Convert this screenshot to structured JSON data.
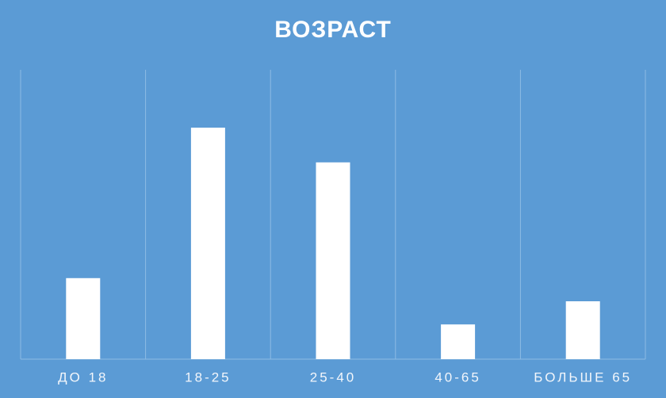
{
  "chart_data": {
    "type": "bar",
    "title": "ВОЗРАСТ",
    "categories": [
      "ДО 18",
      "18-25",
      "25-40",
      "40-65",
      "БОЛЬШЕ 65"
    ],
    "values": [
      28,
      80,
      68,
      12,
      20
    ],
    "color": "#ffffff",
    "ylim": [
      0,
      100
    ]
  }
}
